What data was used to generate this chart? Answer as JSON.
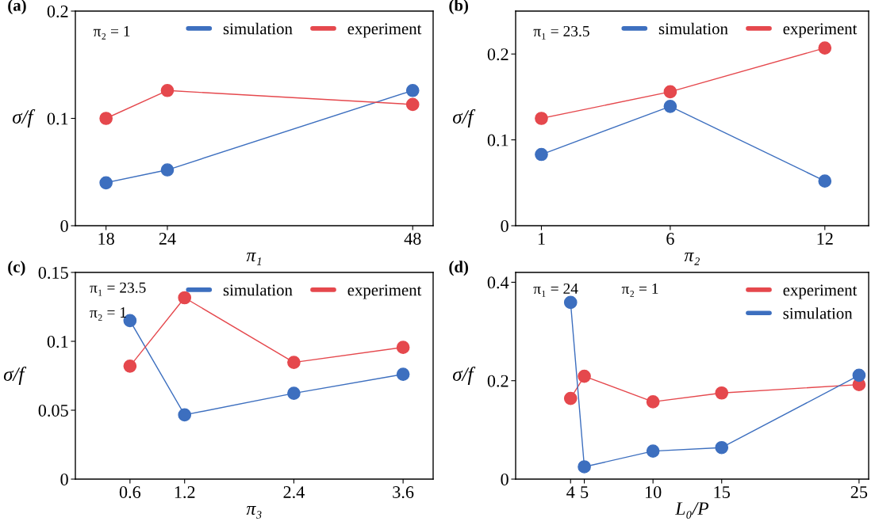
{
  "chart_data": [
    {
      "type": "line",
      "title": "(a)",
      "xlabel": "π₁",
      "ylabel": "σ/f",
      "annotations": [
        "π₂ = 1"
      ],
      "x": [
        18,
        24,
        48
      ],
      "xlim": [
        15,
        50
      ],
      "xticks": [
        18,
        24,
        48
      ],
      "ylim": [
        0,
        0.2
      ],
      "yticks": [
        0,
        0.1,
        0.2
      ],
      "marker": "circle",
      "line_style": "solid",
      "legend": "top right",
      "grid": false,
      "series": [
        {
          "name": "simulation",
          "color": "#3d6fbf",
          "values": [
            0.04,
            0.052,
            0.126
          ]
        },
        {
          "name": "experiment",
          "color": "#e5484d",
          "values": [
            0.1,
            0.126,
            0.113
          ]
        }
      ]
    },
    {
      "type": "line",
      "title": "(b)",
      "xlabel": "π₂",
      "ylabel": "σ/f",
      "annotations": [
        "π₁ = 23.5"
      ],
      "x": [
        1,
        6,
        12
      ],
      "xlim": [
        0,
        13.7
      ],
      "xticks": [
        1,
        6,
        12
      ],
      "ylim": [
        0,
        0.25
      ],
      "yticks": [
        0,
        0.1,
        0.2
      ],
      "marker": "circle",
      "line_style": "solid",
      "legend": "top right",
      "grid": false,
      "series": [
        {
          "name": "simulation",
          "color": "#3d6fbf",
          "values": [
            0.083,
            0.139,
            0.052
          ]
        },
        {
          "name": "experiment",
          "color": "#e5484d",
          "values": [
            0.125,
            0.156,
            0.207
          ]
        }
      ]
    },
    {
      "type": "line",
      "title": "(c)",
      "xlabel": "π₃",
      "ylabel": "σ/f",
      "annotations": [
        "π₁ = 23.5",
        "π₂ = 1"
      ],
      "x": [
        0.6,
        1.2,
        2.4,
        3.6
      ],
      "xlim": [
        0,
        3.93
      ],
      "xticks": [
        0.6,
        1.2,
        2.4,
        3.6
      ],
      "ylim": [
        0,
        0.15
      ],
      "yticks": [
        0,
        0.05,
        0.1,
        0.15
      ],
      "marker": "circle",
      "line_style": "solid",
      "legend": "top right",
      "grid": false,
      "series": [
        {
          "name": "simulation",
          "color": "#3d6fbf",
          "values": [
            0.115,
            0.0466,
            0.0623,
            0.0761
          ]
        },
        {
          "name": "experiment",
          "color": "#e5484d",
          "values": [
            0.082,
            0.1316,
            0.0847,
            0.0956
          ]
        }
      ]
    },
    {
      "type": "line",
      "title": "(d)",
      "xlabel": "L₀/P",
      "ylabel": "σ/f",
      "annotations": [
        "π₁ = 24",
        "π₂ = 1"
      ],
      "x": [
        4,
        5,
        10,
        15,
        25
      ],
      "xlim": [
        0,
        25.7
      ],
      "xticks": [
        4,
        5,
        10,
        15,
        25
      ],
      "ylim": [
        0,
        0.42
      ],
      "yticks": [
        0,
        0.2,
        0.4
      ],
      "marker": "circle",
      "line_style": "solid",
      "legend": "top right",
      "grid": false,
      "series": [
        {
          "name": "experiment",
          "color": "#e5484d",
          "values": [
            0.164,
            0.209,
            0.157,
            0.175,
            0.192
          ]
        },
        {
          "name": "simulation",
          "color": "#3d6fbf",
          "values": [
            0.359,
            0.025,
            0.057,
            0.064,
            0.211
          ]
        }
      ]
    }
  ]
}
